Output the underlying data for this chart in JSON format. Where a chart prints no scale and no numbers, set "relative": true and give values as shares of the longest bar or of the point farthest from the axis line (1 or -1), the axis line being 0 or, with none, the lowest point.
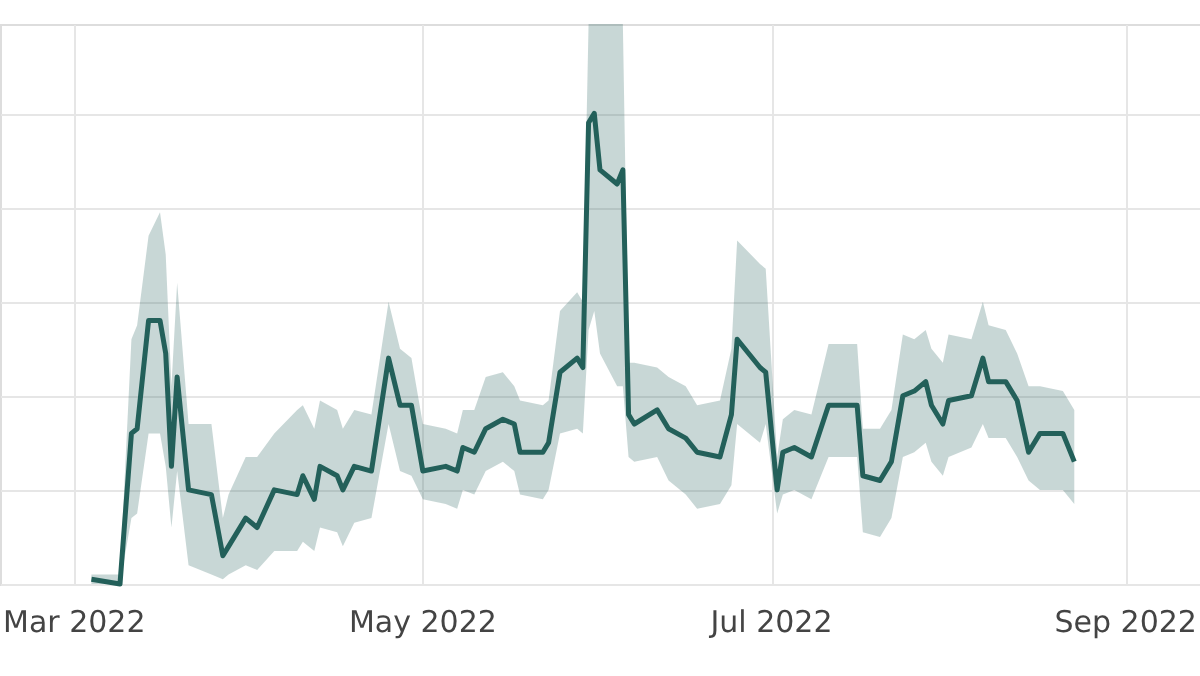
{
  "chart_data": {
    "type": "line",
    "relative": true,
    "grid": true,
    "line_style": "solid",
    "marker": "none",
    "xlim": [
      "2022-02-16",
      "2022-09-14"
    ],
    "xticks": [
      {
        "value": "2022-03-01",
        "label": "Mar 2022"
      },
      {
        "value": "2022-05-01",
        "label": "May 2022"
      },
      {
        "value": "2022-07-01",
        "label": "Jul 2022"
      },
      {
        "value": "2022-09-01",
        "label": "Sep 2022"
      }
    ],
    "x": [
      "2022-03-04",
      "2022-03-09",
      "2022-03-11",
      "2022-03-12",
      "2022-03-14",
      "2022-03-16",
      "2022-03-17",
      "2022-03-18",
      "2022-03-19",
      "2022-03-21",
      "2022-03-25",
      "2022-03-27",
      "2022-03-28",
      "2022-03-31",
      "2022-04-02",
      "2022-04-05",
      "2022-04-09",
      "2022-04-10",
      "2022-04-12",
      "2022-04-13",
      "2022-04-16",
      "2022-04-17",
      "2022-04-19",
      "2022-04-22",
      "2022-04-25",
      "2022-04-27",
      "2022-04-29",
      "2022-05-01",
      "2022-05-05",
      "2022-05-07",
      "2022-05-08",
      "2022-05-10",
      "2022-05-12",
      "2022-05-15",
      "2022-05-17",
      "2022-05-18",
      "2022-05-22",
      "2022-05-23",
      "2022-05-25",
      "2022-05-28",
      "2022-05-29",
      "2022-05-30",
      "2022-05-31",
      "2022-06-01",
      "2022-06-04",
      "2022-06-05",
      "2022-06-06",
      "2022-06-07",
      "2022-06-11",
      "2022-06-13",
      "2022-06-16",
      "2022-06-18",
      "2022-06-22",
      "2022-06-24",
      "2022-06-25",
      "2022-06-29",
      "2022-06-30",
      "2022-07-02",
      "2022-07-03",
      "2022-07-05",
      "2022-07-08",
      "2022-07-11",
      "2022-07-16",
      "2022-07-17",
      "2022-07-20",
      "2022-07-22",
      "2022-07-24",
      "2022-07-26",
      "2022-07-28",
      "2022-07-29",
      "2022-07-31",
      "2022-08-01",
      "2022-08-05",
      "2022-08-07",
      "2022-08-08",
      "2022-08-11",
      "2022-08-13",
      "2022-08-15",
      "2022-08-17",
      "2022-08-21",
      "2022-08-23"
    ],
    "series": [
      {
        "color": "#23605a",
        "values": [
          0.01,
          0.0,
          0.32,
          0.33,
          0.56,
          0.56,
          0.49,
          0.25,
          0.44,
          0.2,
          0.19,
          0.06,
          0.08,
          0.14,
          0.12,
          0.2,
          0.19,
          0.23,
          0.18,
          0.25,
          0.23,
          0.2,
          0.25,
          0.24,
          0.48,
          0.38,
          0.38,
          0.24,
          0.25,
          0.24,
          0.29,
          0.28,
          0.33,
          0.35,
          0.34,
          0.28,
          0.28,
          0.3,
          0.45,
          0.48,
          0.46,
          0.98,
          1.0,
          0.88,
          0.85,
          0.88,
          0.36,
          0.34,
          0.37,
          0.33,
          0.31,
          0.28,
          0.27,
          0.36,
          0.52,
          0.46,
          0.45,
          0.2,
          0.28,
          0.29,
          0.27,
          0.38,
          0.38,
          0.23,
          0.22,
          0.26,
          0.4,
          0.41,
          0.43,
          0.38,
          0.34,
          0.39,
          0.4,
          0.48,
          0.43,
          0.43,
          0.39,
          0.28,
          0.32,
          0.32,
          0.26
        ],
        "lower": [
          0.0,
          0.0,
          0.14,
          0.15,
          0.32,
          0.32,
          0.25,
          0.12,
          0.24,
          0.04,
          0.02,
          0.01,
          0.02,
          0.04,
          0.03,
          0.07,
          0.07,
          0.09,
          0.07,
          0.12,
          0.11,
          0.08,
          0.13,
          0.14,
          0.34,
          0.24,
          0.23,
          0.18,
          0.17,
          0.16,
          0.2,
          0.19,
          0.24,
          0.26,
          0.24,
          0.19,
          0.18,
          0.2,
          0.32,
          0.33,
          0.32,
          0.54,
          0.58,
          0.49,
          0.42,
          0.42,
          0.27,
          0.26,
          0.27,
          0.22,
          0.19,
          0.16,
          0.17,
          0.21,
          0.34,
          0.3,
          0.34,
          0.15,
          0.19,
          0.2,
          0.18,
          0.27,
          0.27,
          0.11,
          0.1,
          0.14,
          0.27,
          0.28,
          0.3,
          0.26,
          0.23,
          0.27,
          0.29,
          0.34,
          0.31,
          0.31,
          0.27,
          0.22,
          0.2,
          0.2,
          0.17
        ],
        "upper": [
          0.02,
          0.02,
          0.52,
          0.55,
          0.74,
          0.79,
          0.7,
          0.42,
          0.64,
          0.34,
          0.34,
          0.14,
          0.19,
          0.27,
          0.27,
          0.32,
          0.37,
          0.38,
          0.33,
          0.39,
          0.37,
          0.33,
          0.37,
          0.36,
          0.6,
          0.5,
          0.48,
          0.34,
          0.33,
          0.32,
          0.37,
          0.37,
          0.44,
          0.45,
          0.42,
          0.39,
          0.38,
          0.39,
          0.58,
          0.62,
          0.6,
          1.19,
          1.19,
          1.19,
          1.19,
          1.19,
          0.47,
          0.47,
          0.46,
          0.44,
          0.42,
          0.38,
          0.39,
          0.5,
          0.73,
          0.68,
          0.67,
          0.27,
          0.35,
          0.37,
          0.36,
          0.51,
          0.51,
          0.33,
          0.33,
          0.37,
          0.53,
          0.52,
          0.54,
          0.5,
          0.47,
          0.53,
          0.52,
          0.6,
          0.55,
          0.54,
          0.49,
          0.42,
          0.42,
          0.41,
          0.37
        ]
      }
    ]
  }
}
